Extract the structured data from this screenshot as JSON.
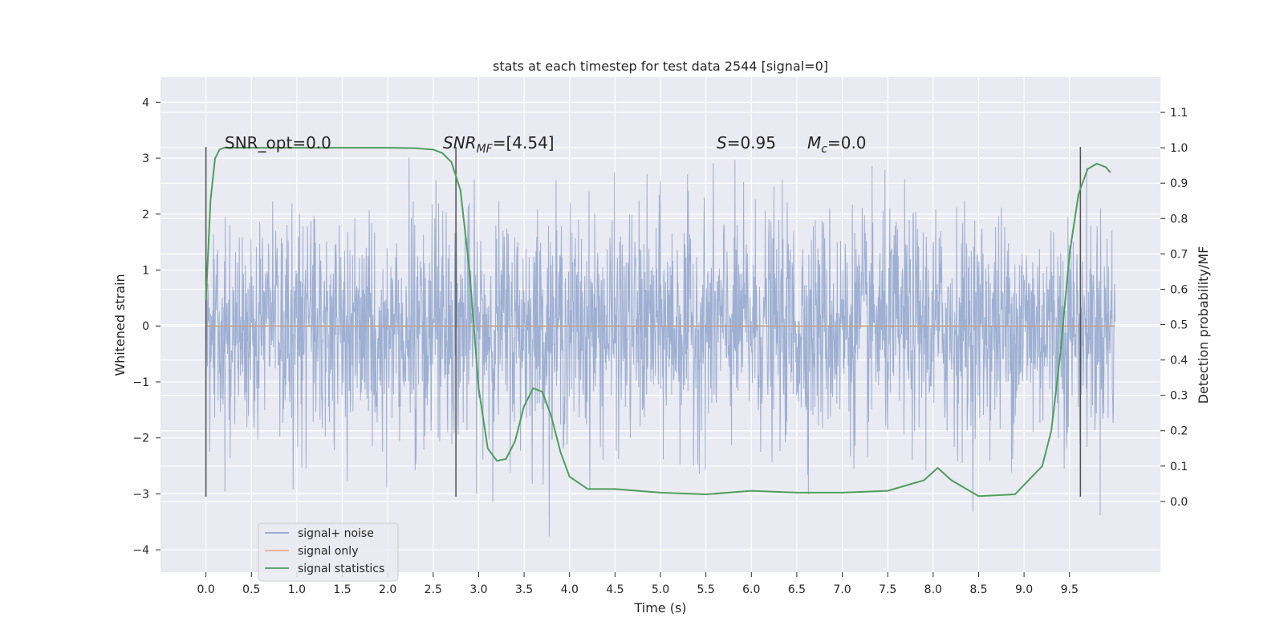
{
  "chart_data": {
    "type": "line",
    "title": "stats at each timestep for test data 2544 [signal=0]",
    "xlabel": "Time (s)",
    "ylabel_left": "Whitened strain",
    "ylabel_right": "Detection probability/MF",
    "xlim": [
      -0.5,
      10.5
    ],
    "ylim_left": [
      -4.4,
      4.45
    ],
    "ylim_right": [
      -0.2,
      1.2
    ],
    "x_ticks": [
      "0.0",
      "0.5",
      "1.0",
      "1.5",
      "2.0",
      "2.5",
      "3.0",
      "3.5",
      "4.0",
      "4.5",
      "5.0",
      "5.5",
      "6.0",
      "6.5",
      "7.0",
      "7.5",
      "8.0",
      "8.5",
      "9.0",
      "9.5"
    ],
    "y_ticks_left": [
      "4",
      "3",
      "2",
      "1",
      "0",
      "−1",
      "−2",
      "−3",
      "−4"
    ],
    "y_ticks_right": [
      "1.1",
      "1.0",
      "0.9",
      "0.8",
      "0.7",
      "0.6",
      "0.5",
      "0.4",
      "0.3",
      "0.2",
      "0.1",
      "0.0"
    ],
    "grid": true,
    "legend_placement": "lower-left",
    "annotations": {
      "snr_opt": "SNR_opt=0.0",
      "snr_mf_label": "SNR",
      "snr_mf_sub": "MF",
      "snr_mf_value": "=[4.54]",
      "s_label": "S",
      "s_value": "=0.95",
      "mc_label": "M",
      "mc_sub": "c",
      "mc_value": "=0.0"
    },
    "vertical_markers_x": [
      0.0,
      2.75,
      9.62
    ],
    "series": [
      {
        "name": "signal+ noise",
        "color": "#8fa4cc",
        "noise_range": [
          0.0,
          10.0
        ],
        "typical_amplitude": 2.0,
        "peak_amplitude": 4.05
      },
      {
        "name": "signal only",
        "color": "#e8a98f",
        "x": [
          0.0,
          10.0
        ],
        "y": [
          0.0,
          0.0
        ]
      },
      {
        "name": "signal statistics",
        "color": "#4c9f5a",
        "x": [
          0.0,
          0.05,
          0.1,
          0.15,
          0.2,
          0.3,
          0.5,
          1.0,
          1.5,
          2.0,
          2.3,
          2.5,
          2.6,
          2.7,
          2.8,
          2.9,
          3.0,
          3.1,
          3.2,
          3.3,
          3.4,
          3.5,
          3.6,
          3.7,
          3.8,
          3.9,
          4.0,
          4.2,
          4.5,
          5.0,
          5.5,
          6.0,
          6.5,
          7.0,
          7.5,
          7.9,
          8.05,
          8.2,
          8.5,
          8.9,
          9.2,
          9.3,
          9.4,
          9.5,
          9.6,
          9.7,
          9.8,
          9.9,
          9.95
        ],
        "y": [
          0.57,
          0.85,
          0.97,
          0.995,
          1.0,
          1.0,
          1.0,
          1.0,
          1.0,
          1.0,
          0.999,
          0.995,
          0.985,
          0.96,
          0.88,
          0.65,
          0.32,
          0.15,
          0.115,
          0.12,
          0.17,
          0.27,
          0.32,
          0.31,
          0.24,
          0.14,
          0.07,
          0.035,
          0.035,
          0.025,
          0.02,
          0.03,
          0.025,
          0.025,
          0.03,
          0.06,
          0.095,
          0.06,
          0.015,
          0.02,
          0.1,
          0.2,
          0.42,
          0.7,
          0.87,
          0.94,
          0.955,
          0.945,
          0.93
        ]
      }
    ]
  }
}
